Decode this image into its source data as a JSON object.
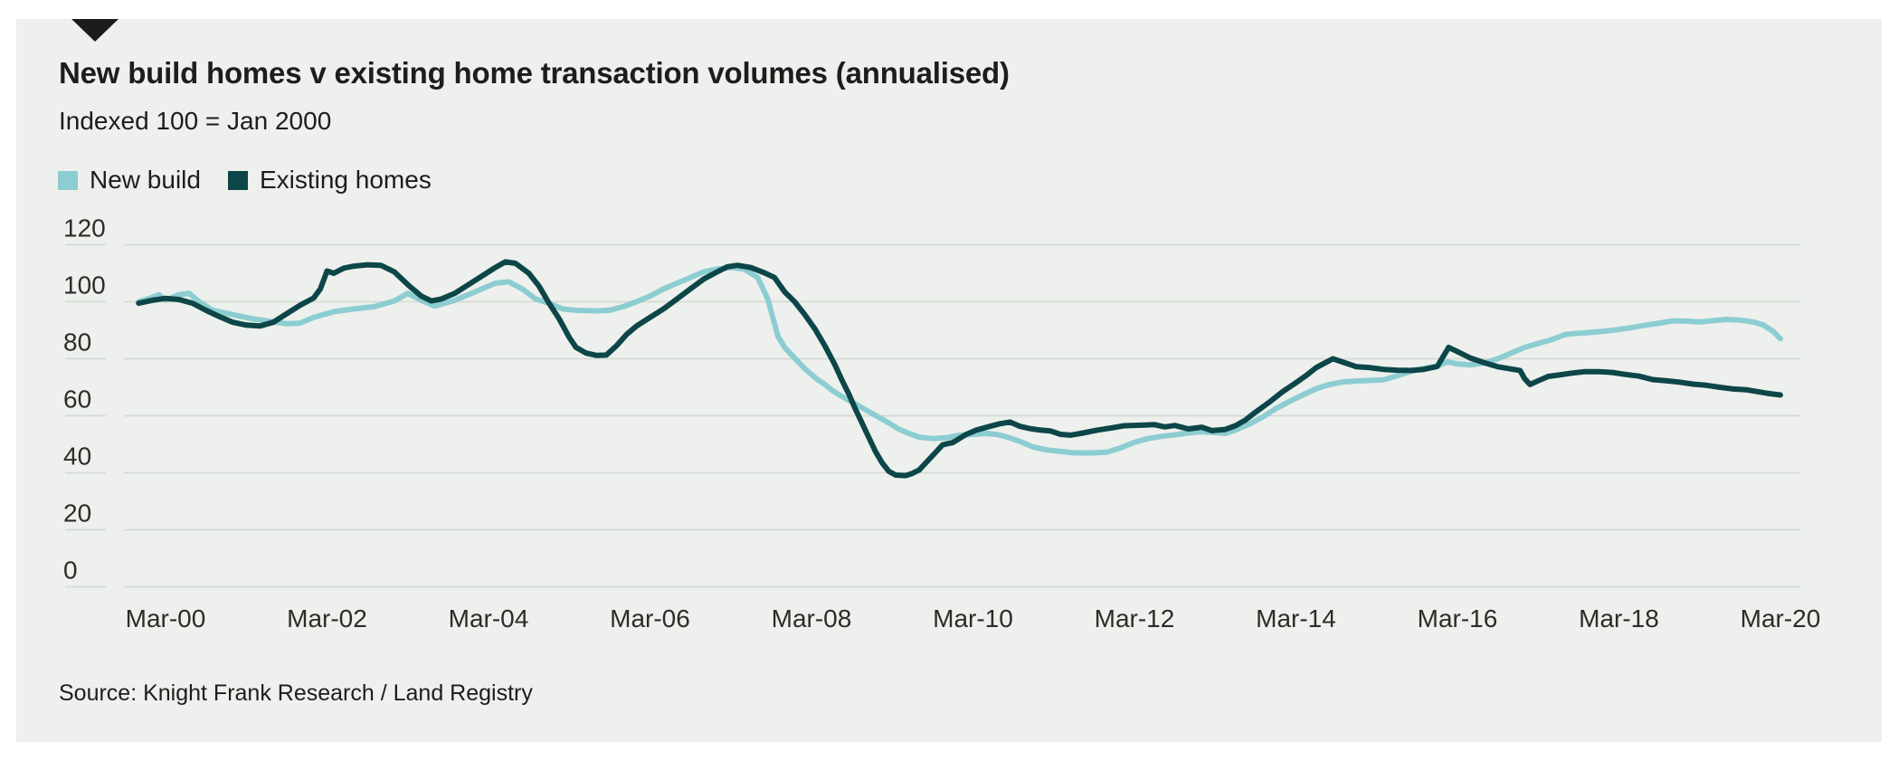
{
  "source_note": "Source: Knight Frank Research / Land Registry",
  "chart_data": {
    "type": "line",
    "title": "New build homes v existing home transaction volumes (annualised)",
    "subtitle": "Indexed 100 = Jan 2000",
    "grid": true,
    "legend_position": "top-left",
    "x_unit": "months since Jan-2000",
    "x_tick_months": [
      2,
      26,
      50,
      74,
      98,
      122,
      146,
      170,
      194,
      218,
      242
    ],
    "x_tick_labels": [
      "Mar-00",
      "Mar-02",
      "Mar-04",
      "Mar-06",
      "Mar-08",
      "Mar-10",
      "Mar-12",
      "Mar-14",
      "Mar-16",
      "Mar-18",
      "Mar-20"
    ],
    "y_ticks": [
      0,
      20,
      40,
      60,
      80,
      100,
      120
    ],
    "ylim": [
      0,
      125
    ],
    "colors": {
      "new_build": "#8ccdd2",
      "existing_homes": "#0d4649",
      "background": "#edf0ec",
      "gridline": "#d4d8d3"
    },
    "series": [
      {
        "name": "New build",
        "color": "#8ccdd2",
        "points": [
          [
            -2,
            100
          ],
          [
            0,
            101.5
          ],
          [
            1,
            102.5
          ],
          [
            2,
            100.5
          ],
          [
            4,
            102.5
          ],
          [
            5.5,
            103
          ],
          [
            7,
            100
          ],
          [
            9,
            97
          ],
          [
            12,
            95.5
          ],
          [
            15,
            94
          ],
          [
            18,
            93
          ],
          [
            20,
            92.3
          ],
          [
            22,
            92.5
          ],
          [
            24,
            94.5
          ],
          [
            27,
            96.5
          ],
          [
            30,
            97.5
          ],
          [
            33,
            98.3
          ],
          [
            36,
            100.3
          ],
          [
            38,
            103
          ],
          [
            40,
            100.5
          ],
          [
            42,
            98.5
          ],
          [
            45,
            100.5
          ],
          [
            48,
            103.5
          ],
          [
            51,
            106.5
          ],
          [
            53,
            107
          ],
          [
            55,
            104.5
          ],
          [
            57,
            101
          ],
          [
            59,
            99.5
          ],
          [
            61,
            97.5
          ],
          [
            63,
            97
          ],
          [
            66,
            96.8
          ],
          [
            68,
            97
          ],
          [
            70,
            98.3
          ],
          [
            72,
            100
          ],
          [
            74,
            102
          ],
          [
            76,
            104.5
          ],
          [
            78,
            106.5
          ],
          [
            80,
            108.5
          ],
          [
            82,
            110.5
          ],
          [
            84,
            111.5
          ],
          [
            86,
            112
          ],
          [
            88,
            111.5
          ],
          [
            90,
            108.5
          ],
          [
            91.5,
            101
          ],
          [
            93,
            88
          ],
          [
            94,
            84
          ],
          [
            95,
            81.5
          ],
          [
            96,
            79
          ],
          [
            97,
            76.5
          ],
          [
            98,
            74.5
          ],
          [
            99,
            72.5
          ],
          [
            100,
            71
          ],
          [
            101,
            69
          ],
          [
            102,
            67.5
          ],
          [
            103.5,
            65.5
          ],
          [
            105,
            63.5
          ],
          [
            106.5,
            61.5
          ],
          [
            108,
            59.5
          ],
          [
            109.5,
            57.5
          ],
          [
            111,
            55.3
          ],
          [
            112.5,
            53.8
          ],
          [
            114,
            52.5
          ],
          [
            116,
            52
          ],
          [
            118,
            52.3
          ],
          [
            120,
            53.2
          ],
          [
            122,
            53.5
          ],
          [
            124,
            53.8
          ],
          [
            125.5,
            53.5
          ],
          [
            127,
            52.6
          ],
          [
            129,
            51
          ],
          [
            131,
            49
          ],
          [
            133,
            48
          ],
          [
            135,
            47.5
          ],
          [
            137,
            47
          ],
          [
            140,
            47
          ],
          [
            142,
            47.3
          ],
          [
            144,
            48.8
          ],
          [
            146,
            50.7
          ],
          [
            148,
            52
          ],
          [
            150,
            52.8
          ],
          [
            152,
            53.3
          ],
          [
            154,
            54
          ],
          [
            156,
            54.4
          ],
          [
            158,
            54.1
          ],
          [
            159.5,
            53.8
          ],
          [
            161,
            55
          ],
          [
            163,
            57
          ],
          [
            165,
            59.5
          ],
          [
            167,
            62.5
          ],
          [
            169,
            65
          ],
          [
            171,
            67.3
          ],
          [
            173,
            69.5
          ],
          [
            175,
            71
          ],
          [
            177,
            71.9
          ],
          [
            179,
            72.2
          ],
          [
            181,
            72.4
          ],
          [
            183,
            72.6
          ],
          [
            185,
            74
          ],
          [
            187,
            75.5
          ],
          [
            189,
            76.6
          ],
          [
            191,
            77.5
          ],
          [
            192.5,
            78.9
          ],
          [
            194,
            78.2
          ],
          [
            196,
            77.9
          ],
          [
            198,
            78.5
          ],
          [
            200,
            80
          ],
          [
            202,
            82
          ],
          [
            204,
            84
          ],
          [
            206,
            85.4
          ],
          [
            208,
            86.7
          ],
          [
            210,
            88.5
          ],
          [
            212,
            89
          ],
          [
            214,
            89.3
          ],
          [
            216,
            89.7
          ],
          [
            218,
            90.3
          ],
          [
            220,
            91
          ],
          [
            222,
            91.8
          ],
          [
            224,
            92.5
          ],
          [
            226,
            93.3
          ],
          [
            228,
            93.2
          ],
          [
            230,
            92.9
          ],
          [
            232,
            93.4
          ],
          [
            234,
            93.8
          ],
          [
            236,
            93.6
          ],
          [
            238,
            92.9
          ],
          [
            239.5,
            91.8
          ],
          [
            241,
            89.5
          ],
          [
            242,
            87
          ]
        ]
      },
      {
        "name": "Existing homes",
        "color": "#0d4649",
        "points": [
          [
            -2,
            99.5
          ],
          [
            0,
            100.5
          ],
          [
            2,
            101.2
          ],
          [
            4,
            100.8
          ],
          [
            6,
            99.5
          ],
          [
            8,
            97
          ],
          [
            10,
            94.8
          ],
          [
            12,
            92.8
          ],
          [
            14,
            91.8
          ],
          [
            16,
            91.5
          ],
          [
            18,
            92.8
          ],
          [
            20,
            95.8
          ],
          [
            22,
            98.8
          ],
          [
            24,
            101.3
          ],
          [
            25,
            104.5
          ],
          [
            26,
            110.8
          ],
          [
            27,
            110
          ],
          [
            28.5,
            111.8
          ],
          [
            30,
            112.5
          ],
          [
            32,
            113
          ],
          [
            34,
            112.8
          ],
          [
            36,
            110.5
          ],
          [
            38,
            106
          ],
          [
            40,
            102
          ],
          [
            41.5,
            100.3
          ],
          [
            43,
            101
          ],
          [
            45,
            103
          ],
          [
            47,
            106
          ],
          [
            49,
            109
          ],
          [
            51,
            112
          ],
          [
            52.5,
            114
          ],
          [
            54,
            113.5
          ],
          [
            56,
            110
          ],
          [
            57.5,
            105.5
          ],
          [
            59,
            99.5
          ],
          [
            60.5,
            94
          ],
          [
            62,
            87.5
          ],
          [
            63,
            84
          ],
          [
            64.5,
            82
          ],
          [
            66,
            81.2
          ],
          [
            67.5,
            81.3
          ],
          [
            69,
            84.5
          ],
          [
            70.5,
            88.5
          ],
          [
            72,
            91.5
          ],
          [
            74,
            94.5
          ],
          [
            76,
            97.5
          ],
          [
            78,
            101
          ],
          [
            80,
            104.5
          ],
          [
            82,
            108
          ],
          [
            84,
            110.5
          ],
          [
            85.5,
            112.3
          ],
          [
            87,
            112.8
          ],
          [
            89,
            112
          ],
          [
            91,
            110.2
          ],
          [
            92.5,
            108.5
          ],
          [
            94,
            103.5
          ],
          [
            95.5,
            100
          ],
          [
            97,
            95.5
          ],
          [
            98.5,
            90.5
          ],
          [
            100,
            84.5
          ],
          [
            101.5,
            77.8
          ],
          [
            102.5,
            72.6
          ],
          [
            103.5,
            67.9
          ],
          [
            104.5,
            62.5
          ],
          [
            105.5,
            57.5
          ],
          [
            106.5,
            52.5
          ],
          [
            107.5,
            47.5
          ],
          [
            108.5,
            43.5
          ],
          [
            109.5,
            40.5
          ],
          [
            110.5,
            39.2
          ],
          [
            112,
            39
          ],
          [
            113,
            39.8
          ],
          [
            114,
            41
          ],
          [
            115,
            43.5
          ],
          [
            116.5,
            47.3
          ],
          [
            117.5,
            49.8
          ],
          [
            119,
            50.6
          ],
          [
            121,
            53.5
          ],
          [
            122.5,
            55
          ],
          [
            124.5,
            56.3
          ],
          [
            126,
            57.2
          ],
          [
            127.5,
            57.8
          ],
          [
            129,
            56.3
          ],
          [
            130.5,
            55.5
          ],
          [
            132,
            55
          ],
          [
            133.5,
            54.7
          ],
          [
            135,
            53.5
          ],
          [
            136.5,
            53.2
          ],
          [
            138,
            53.8
          ],
          [
            140.5,
            55
          ],
          [
            142.5,
            55.7
          ],
          [
            144.5,
            56.5
          ],
          [
            147,
            56.7
          ],
          [
            149,
            56.9
          ],
          [
            150.5,
            56.1
          ],
          [
            152,
            56.6
          ],
          [
            154,
            55.4
          ],
          [
            156,
            56
          ],
          [
            157.5,
            54.8
          ],
          [
            159.5,
            55.2
          ],
          [
            161,
            56.5
          ],
          [
            162.5,
            58.5
          ],
          [
            164,
            61.3
          ],
          [
            166,
            64.7
          ],
          [
            168,
            68.4
          ],
          [
            170,
            71.6
          ],
          [
            171.5,
            74.1
          ],
          [
            173,
            76.9
          ],
          [
            174.5,
            78.8
          ],
          [
            175.5,
            80
          ],
          [
            177.5,
            78.4
          ],
          [
            179,
            77.2
          ],
          [
            181,
            76.9
          ],
          [
            183,
            76.3
          ],
          [
            185,
            76
          ],
          [
            187,
            75.9
          ],
          [
            189,
            76.3
          ],
          [
            191,
            77.3
          ],
          [
            192.7,
            84
          ],
          [
            194,
            82.5
          ],
          [
            196,
            80.2
          ],
          [
            198,
            78.6
          ],
          [
            200,
            77.2
          ],
          [
            202,
            76.4
          ],
          [
            203.3,
            75.9
          ],
          [
            204,
            73
          ],
          [
            204.8,
            71
          ],
          [
            206,
            72.3
          ],
          [
            207.5,
            73.8
          ],
          [
            209,
            74.3
          ],
          [
            211,
            75
          ],
          [
            213,
            75.5
          ],
          [
            215,
            75.5
          ],
          [
            217,
            75.2
          ],
          [
            219,
            74.5
          ],
          [
            221,
            73.9
          ],
          [
            223,
            72.7
          ],
          [
            225,
            72.3
          ],
          [
            227,
            71.8
          ],
          [
            229,
            71.1
          ],
          [
            231,
            70.7
          ],
          [
            233,
            70
          ],
          [
            235,
            69.4
          ],
          [
            237,
            69.1
          ],
          [
            238.5,
            68.5
          ],
          [
            240,
            67.9
          ],
          [
            242,
            67.3
          ]
        ]
      }
    ]
  }
}
